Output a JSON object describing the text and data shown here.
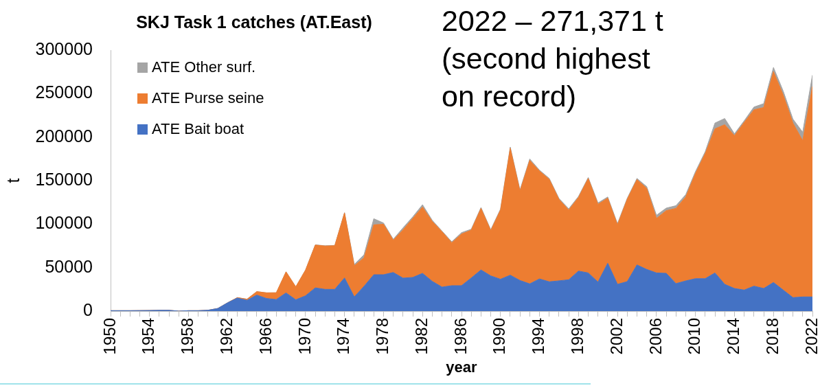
{
  "chart_data": {
    "type": "area",
    "title": "SKJ Task 1 catches (AT.East)",
    "xlabel": "year",
    "ylabel": "t",
    "stacked": true,
    "legend": "top left",
    "marker": "none",
    "annotations": [
      "2022 – 271,371 t\n(second highest\non record)"
    ],
    "x": [
      1950,
      1951,
      1952,
      1953,
      1954,
      1955,
      1956,
      1957,
      1958,
      1959,
      1960,
      1961,
      1962,
      1963,
      1964,
      1965,
      1966,
      1967,
      1968,
      1969,
      1970,
      1971,
      1972,
      1973,
      1974,
      1975,
      1976,
      1977,
      1978,
      1979,
      1980,
      1981,
      1982,
      1983,
      1984,
      1985,
      1986,
      1987,
      1988,
      1989,
      1990,
      1991,
      1992,
      1993,
      1994,
      1995,
      1996,
      1997,
      1998,
      1999,
      2000,
      2001,
      2002,
      2003,
      2004,
      2005,
      2006,
      2007,
      2008,
      2009,
      2010,
      2011,
      2012,
      2013,
      2014,
      2015,
      2016,
      2017,
      2018,
      2019,
      2020,
      2021,
      2022
    ],
    "xlim": [
      1950,
      2022
    ],
    "xticks": [
      1950,
      {
        "value": 1951,
        "label": null
      },
      {
        "value": 1952,
        "label": null
      },
      {
        "value": 1953,
        "label": null
      },
      1954,
      {
        "value": 1955,
        "label": null
      },
      {
        "value": 1956,
        "label": null
      },
      {
        "value": 1957,
        "label": null
      },
      1958,
      {
        "value": 1959,
        "label": null
      },
      {
        "value": 1960,
        "label": null
      },
      {
        "value": 1961,
        "label": null
      },
      1962,
      {
        "value": 1963,
        "label": null
      },
      {
        "value": 1964,
        "label": null
      },
      {
        "value": 1965,
        "label": null
      },
      1966,
      {
        "value": 1967,
        "label": null
      },
      {
        "value": 1968,
        "label": null
      },
      {
        "value": 1969,
        "label": null
      },
      1970,
      {
        "value": 1971,
        "label": null
      },
      {
        "value": 1972,
        "label": null
      },
      {
        "value": 1973,
        "label": null
      },
      1974,
      {
        "value": 1975,
        "label": null
      },
      {
        "value": 1976,
        "label": null
      },
      {
        "value": 1977,
        "label": null
      },
      1978,
      {
        "value": 1979,
        "label": null
      },
      {
        "value": 1980,
        "label": null
      },
      {
        "value": 1981,
        "label": null
      },
      1982,
      {
        "value": 1983,
        "label": null
      },
      {
        "value": 1984,
        "label": null
      },
      {
        "value": 1985,
        "label": null
      },
      1986,
      {
        "value": 1987,
        "label": null
      },
      {
        "value": 1988,
        "label": null
      },
      {
        "value": 1989,
        "label": null
      },
      1990,
      {
        "value": 1991,
        "label": null
      },
      {
        "value": 1992,
        "label": null
      },
      {
        "value": 1993,
        "label": null
      },
      1994,
      {
        "value": 1995,
        "label": null
      },
      {
        "value": 1996,
        "label": null
      },
      {
        "value": 1997,
        "label": null
      },
      1998,
      {
        "value": 1999,
        "label": null
      },
      {
        "value": 2000,
        "label": null
      },
      {
        "value": 2001,
        "label": null
      },
      2002,
      {
        "value": 2003,
        "label": null
      },
      {
        "value": 2004,
        "label": null
      },
      {
        "value": 2005,
        "label": null
      },
      2006,
      {
        "value": 2007,
        "label": null
      },
      {
        "value": 2008,
        "label": null
      },
      {
        "value": 2009,
        "label": null
      },
      2010,
      {
        "value": 2011,
        "label": null
      },
      {
        "value": 2012,
        "label": null
      },
      {
        "value": 2013,
        "label": null
      },
      2014,
      {
        "value": 2015,
        "label": null
      },
      {
        "value": 2016,
        "label": null
      },
      {
        "value": 2017,
        "label": null
      },
      2018,
      {
        "value": 2019,
        "label": null
      },
      {
        "value": 2020,
        "label": null
      },
      {
        "value": 2021,
        "label": null
      },
      2022
    ],
    "ylim": [
      0,
      300000
    ],
    "yticks": [
      0,
      50000,
      100000,
      150000,
      200000,
      250000,
      300000
    ],
    "series": [
      {
        "name": "ATE Bait boat",
        "color": "#4472c4",
        "values": [
          500,
          500,
          500,
          600,
          700,
          900,
          900,
          0,
          500,
          500,
          1000,
          3000,
          9500,
          15000,
          12400,
          18400,
          14500,
          13300,
          20900,
          13000,
          17600,
          26700,
          25000,
          25000,
          38100,
          16300,
          28500,
          41800,
          41800,
          44400,
          37900,
          38700,
          43400,
          34200,
          27600,
          29200,
          29200,
          38100,
          47300,
          40500,
          36600,
          41300,
          35200,
          31300,
          37000,
          33700,
          34800,
          36000,
          46000,
          43900,
          33400,
          55000,
          30800,
          33900,
          53100,
          47900,
          43900,
          43400,
          31600,
          34700,
          37300,
          37300,
          43900,
          30800,
          26000,
          24200,
          28700,
          26000,
          32900,
          24200,
          15500,
          16300,
          16300
        ]
      },
      {
        "name": "ATE Purse seine",
        "color": "#ed7d31",
        "values": [
          0,
          0,
          0,
          0,
          0,
          0,
          0,
          0,
          0,
          0,
          0,
          0,
          0,
          500,
          1300,
          4000,
          6500,
          7800,
          24200,
          14900,
          29600,
          49200,
          49800,
          50200,
          74800,
          35800,
          32800,
          57400,
          58100,
          37100,
          55500,
          67800,
          76300,
          68900,
          63700,
          49400,
          59400,
          55000,
          70800,
          52100,
          79600,
          146000,
          102900,
          142000,
          124000,
          117800,
          93600,
          80200,
          84700,
          108600,
          89400,
          74900,
          68400,
          94700,
          98100,
          93300,
          62600,
          72100,
          86500,
          96500,
          121000,
          143900,
          165700,
          183500,
          175700,
          192800,
          202700,
          208100,
          242500,
          224300,
          200700,
          179600,
          242000
        ]
      },
      {
        "name": "ATE Other surf.",
        "color": "#a5a5a5",
        "values": [
          0,
          0,
          0,
          0,
          0,
          0,
          0,
          0,
          0,
          0,
          0,
          0,
          0,
          0,
          0,
          0,
          0,
          0,
          0,
          0,
          0,
          300,
          300,
          300,
          300,
          1600,
          3500,
          7000,
          1400,
          1100,
          2300,
          1900,
          2600,
          1300,
          700,
          1100,
          1600,
          1100,
          1000,
          1000,
          1100,
          1300,
          1300,
          1600,
          1100,
          1100,
          1100,
          1400,
          1100,
          1100,
          1600,
          1300,
          1300,
          1100,
          1300,
          1900,
          3700,
          2900,
          3100,
          2700,
          2100,
          2100,
          6600,
          7100,
          2100,
          1800,
          3200,
          4400,
          4700,
          4500,
          4500,
          9800,
          13000
        ]
      }
    ]
  }
}
